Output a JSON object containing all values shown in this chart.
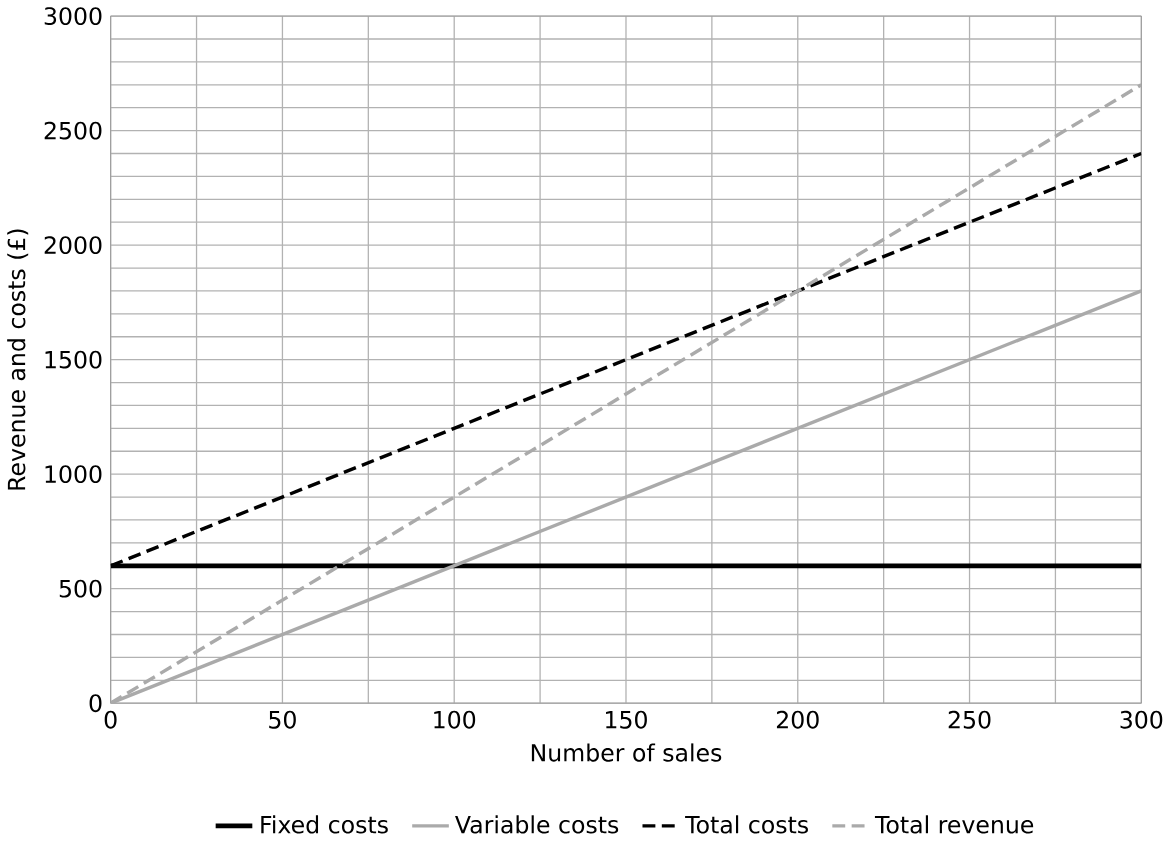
{
  "chart_data": {
    "type": "line",
    "xlabel": "Number of sales",
    "ylabel": "Revenue and costs (£)",
    "x": [
      0,
      300
    ],
    "series": [
      {
        "name": "Fixed costs",
        "color": "#000000",
        "line_style": "solid",
        "values": [
          600,
          600
        ]
      },
      {
        "name": "Variable costs",
        "color": "#aaaaaa",
        "line_style": "solid",
        "values": [
          0,
          1800
        ]
      },
      {
        "name": "Total costs",
        "color": "#000000",
        "line_style": "dashed",
        "values": [
          600,
          2400
        ]
      },
      {
        "name": "Total revenue",
        "color": "#aaaaaa",
        "line_style": "dashed",
        "values": [
          0,
          2700
        ]
      }
    ],
    "xlim": [
      0,
      300
    ],
    "xticks": [
      0,
      {
        "value": 25,
        "label": null
      },
      50,
      {
        "value": 75,
        "label": null
      },
      100,
      {
        "value": 125,
        "label": null
      },
      150,
      {
        "value": 175,
        "label": null
      },
      200,
      {
        "value": 225,
        "label": null
      },
      250,
      {
        "value": 275,
        "label": null
      },
      300
    ],
    "ylim": [
      0,
      3000
    ],
    "yticks": [
      0,
      {
        "value": 100,
        "label": null
      },
      {
        "value": 200,
        "label": null
      },
      {
        "value": 300,
        "label": null
      },
      {
        "value": 400,
        "label": null
      },
      500,
      {
        "value": 600,
        "label": null
      },
      {
        "value": 700,
        "label": null
      },
      {
        "value": 800,
        "label": null
      },
      {
        "value": 900,
        "label": null
      },
      1000,
      {
        "value": 1100,
        "label": null
      },
      {
        "value": 1200,
        "label": null
      },
      {
        "value": 1300,
        "label": null
      },
      {
        "value": 1400,
        "label": null
      },
      1500,
      {
        "value": 1600,
        "label": null
      },
      {
        "value": 1700,
        "label": null
      },
      {
        "value": 1800,
        "label": null
      },
      {
        "value": 1900,
        "label": null
      },
      2000,
      {
        "value": 2100,
        "label": null
      },
      {
        "value": 2200,
        "label": null
      },
      {
        "value": 2300,
        "label": null
      },
      {
        "value": 2400,
        "label": null
      },
      2500,
      {
        "value": 2600,
        "label": null
      },
      {
        "value": 2700,
        "label": null
      },
      {
        "value": 2800,
        "label": null
      },
      {
        "value": 2900,
        "label": null
      },
      3000
    ],
    "grid": true,
    "legend": "bottom",
    "marker": "none"
  }
}
